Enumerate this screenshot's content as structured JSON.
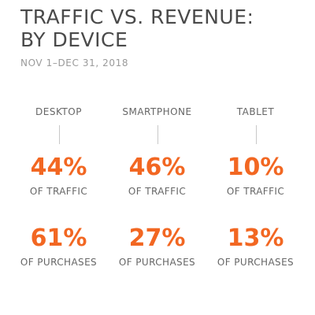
{
  "title_line1": "TRAFFIC VS. REVENUE:",
  "title_line2": "BY DEVICE",
  "subtitle": "NOV 1–DEC 31, 2018",
  "accent_color": "#f26722",
  "chart_data": {
    "type": "table",
    "title": "TRAFFIC VS. REVENUE: BY DEVICE",
    "subtitle": "NOV 1–DEC 31, 2018",
    "categories": [
      "DESKTOP",
      "SMARTPHONE",
      "TABLET"
    ],
    "series": [
      {
        "name": "OF TRAFFIC",
        "values": [
          44,
          46,
          10
        ]
      },
      {
        "name": "OF PURCHASES",
        "values": [
          61,
          27,
          13
        ]
      }
    ],
    "unit": "%"
  },
  "devices": [
    {
      "label": "DESKTOP",
      "traffic": "44%",
      "traffic_label": "OF TRAFFIC",
      "purchases": "61%",
      "purchases_label": "OF PURCHASES"
    },
    {
      "label": "SMARTPHONE",
      "traffic": "46%",
      "traffic_label": "OF TRAFFIC",
      "purchases": "27%",
      "purchases_label": "OF PURCHASES"
    },
    {
      "label": "TABLET",
      "traffic": "10%",
      "traffic_label": "OF TRAFFIC",
      "purchases": "13%",
      "purchases_label": "OF PURCHASES"
    }
  ]
}
